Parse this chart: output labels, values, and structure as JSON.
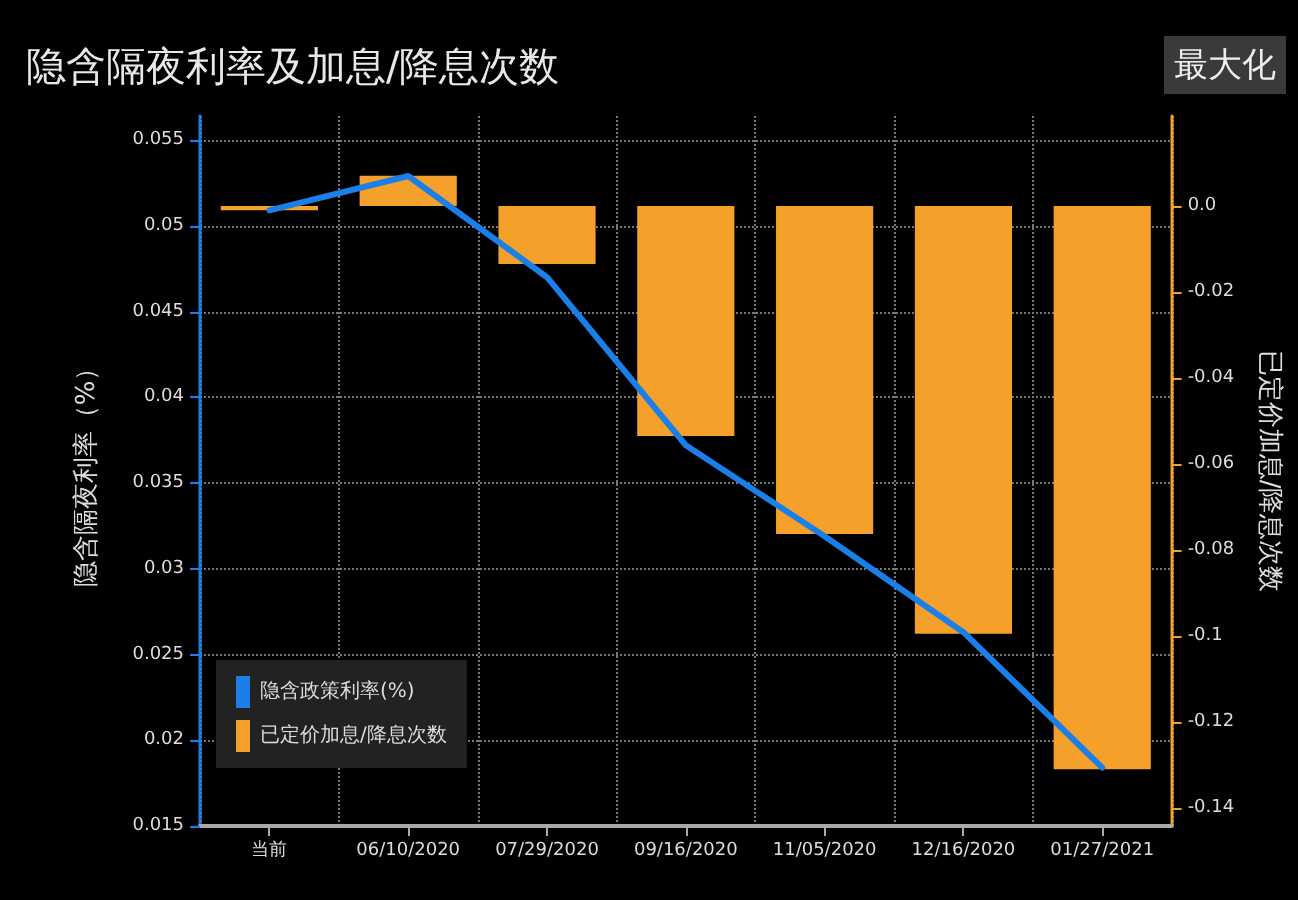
{
  "chart_data": {
    "type": "bar",
    "title": "隐含隔夜利率及加息/降息次数",
    "ylabel": "隐含隔夜利率（%）",
    "y2label": "已定价加息/降息次数",
    "annotations": [
      "最大化"
    ],
    "categories": [
      "当前",
      "06/10/2020",
      "07/29/2020",
      "09/16/2020",
      "11/05/2020",
      "12/16/2020",
      "01/27/2021"
    ],
    "series": [
      {
        "name": "隐含政策利率(%)",
        "type": "line",
        "axis": "y",
        "color": "#1a7fe8",
        "values": [
          0.0509,
          0.0529,
          0.047,
          0.0372,
          0.0319,
          0.0263,
          0.0184
        ]
      },
      {
        "name": "已定价加息/降息次数",
        "axis": "y2",
        "color": "#f5a02a",
        "values": [
          -0.001,
          0.007,
          -0.0135,
          -0.0535,
          -0.0763,
          -0.0995,
          -0.131
        ]
      }
    ],
    "ylim": [
      0.015,
      0.0564
    ],
    "yticks": [
      0.015,
      0.02,
      0.025,
      0.03,
      0.035,
      0.04,
      0.045,
      0.05,
      0.055
    ],
    "y2lim": [
      -0.1442,
      0.0209
    ],
    "y2ticks": [
      {
        "value": -0.14,
        "label": "-0.14"
      },
      {
        "value": -0.12,
        "label": "-0.12"
      },
      {
        "value": -0.1,
        "label": "-0.1"
      },
      {
        "value": -0.08,
        "label": "-0.08"
      },
      {
        "value": -0.06,
        "label": "-0.06"
      },
      {
        "value": -0.04,
        "label": "-0.04"
      },
      {
        "value": -0.02,
        "label": "-0.02"
      },
      {
        "value": 0,
        "label": "0.0"
      }
    ],
    "grid": true,
    "legend": "bottom left",
    "marker": "none",
    "line_style": "solid"
  }
}
